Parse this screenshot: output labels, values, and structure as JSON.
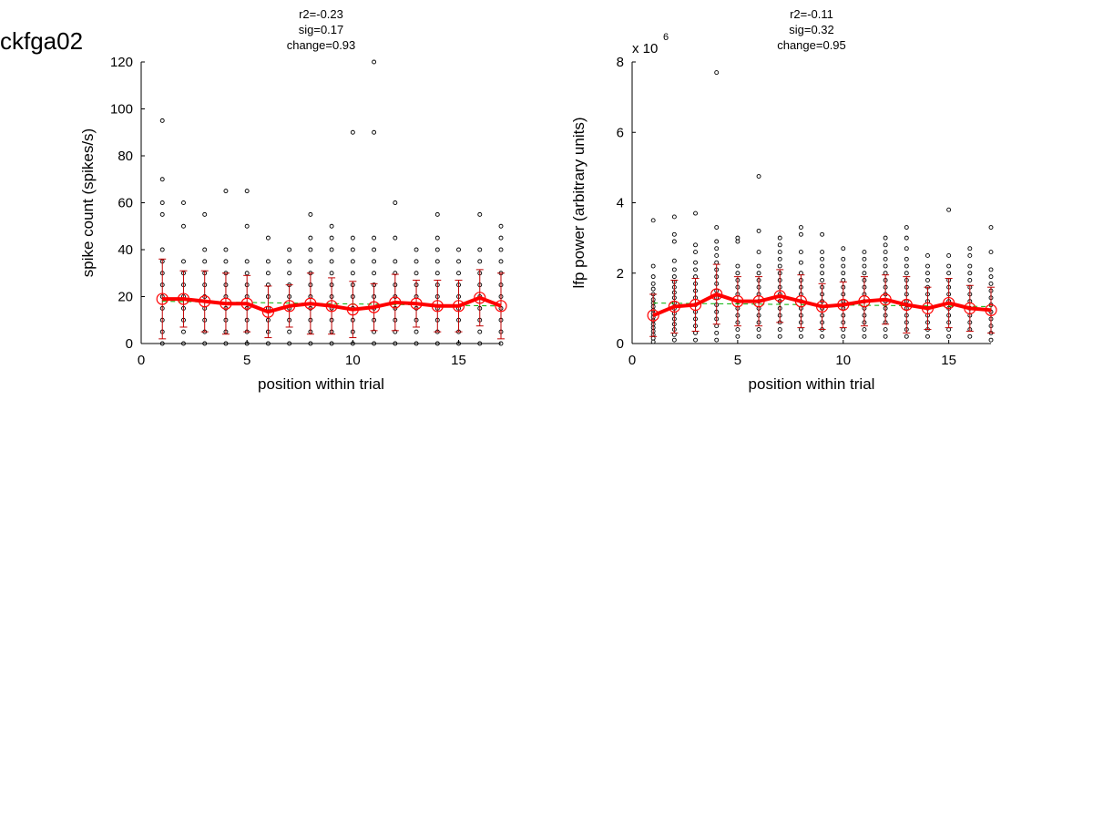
{
  "figure": {
    "title": "ckfga02"
  },
  "colors": {
    "mean": "#ff0000",
    "errorbar": "#c00000",
    "points": "#000000",
    "fit": "#00b000",
    "axis": "#000000"
  },
  "chart_data": [
    {
      "type": "scatter",
      "title_lines": [
        "r2=-0.23",
        "sig=0.17",
        "change=0.93"
      ],
      "xlabel": "position within trial",
      "ylabel": "spike count (spikes/s)",
      "exponent_label": "",
      "xlim": [
        0,
        17
      ],
      "ylim": [
        0,
        120
      ],
      "xticks": [
        0,
        5,
        10,
        15
      ],
      "yticks": [
        0,
        20,
        40,
        60,
        80,
        100,
        120
      ],
      "ytick_labels": [
        "0",
        "20",
        "40",
        "60",
        "80",
        "100",
        "120"
      ],
      "grid": false,
      "series": [
        {
          "kind": "mean",
          "x": [
            1,
            2,
            3,
            4,
            5,
            6,
            7,
            8,
            9,
            10,
            11,
            12,
            13,
            14,
            15,
            16,
            17
          ],
          "y": [
            19,
            19,
            18,
            17,
            17,
            13.5,
            16,
            17,
            16,
            14.5,
            15.5,
            17.5,
            17,
            16,
            16,
            19.5,
            16
          ],
          "sd": [
            17,
            12,
            13,
            13,
            12,
            11,
            9,
            13,
            12,
            12,
            10,
            12,
            10,
            11,
            11,
            12,
            14
          ]
        },
        {
          "kind": "fit",
          "x": [
            1,
            17
          ],
          "y": [
            18,
            16
          ]
        },
        {
          "kind": "points",
          "columns": [
            [
              0,
              5,
              10,
              15,
              20,
              25,
              30,
              35,
              40,
              55,
              60,
              70,
              95
            ],
            [
              0,
              5,
              10,
              15,
              20,
              25,
              30,
              35,
              50,
              60
            ],
            [
              0,
              5,
              10,
              15,
              20,
              25,
              30,
              35,
              40,
              55
            ],
            [
              0,
              5,
              10,
              15,
              20,
              25,
              30,
              35,
              40,
              65
            ],
            [
              0,
              5,
              10,
              15,
              20,
              25,
              30,
              35,
              50,
              65
            ],
            [
              0,
              5,
              10,
              15,
              20,
              25,
              30,
              35,
              45
            ],
            [
              0,
              5,
              10,
              15,
              20,
              25,
              30,
              35,
              40
            ],
            [
              0,
              5,
              10,
              15,
              20,
              25,
              30,
              35,
              40,
              45,
              55
            ],
            [
              0,
              5,
              10,
              15,
              20,
              25,
              30,
              35,
              40,
              45,
              50
            ],
            [
              0,
              5,
              10,
              15,
              20,
              25,
              30,
              35,
              40,
              45,
              90
            ],
            [
              0,
              5,
              10,
              15,
              20,
              25,
              30,
              35,
              40,
              45,
              90,
              120
            ],
            [
              0,
              5,
              10,
              15,
              20,
              25,
              30,
              35,
              45,
              60
            ],
            [
              0,
              5,
              10,
              15,
              20,
              25,
              30,
              35,
              40
            ],
            [
              0,
              5,
              10,
              15,
              20,
              25,
              30,
              35,
              40,
              45,
              55
            ],
            [
              0,
              5,
              10,
              15,
              20,
              25,
              30,
              35,
              40
            ],
            [
              0,
              5,
              10,
              15,
              20,
              25,
              30,
              35,
              40,
              55
            ],
            [
              0,
              5,
              10,
              15,
              20,
              25,
              30,
              35,
              40,
              45,
              50
            ]
          ]
        }
      ]
    },
    {
      "type": "scatter",
      "title_lines": [
        "r2=-0.11",
        "sig=0.32",
        "change=0.95"
      ],
      "xlabel": "position within trial",
      "ylabel": "lfp power (arbitrary units)",
      "exponent_label": "x 10",
      "exponent_sup": "6",
      "xlim": [
        0,
        17
      ],
      "ylim": [
        0,
        8
      ],
      "xticks": [
        0,
        5,
        10,
        15
      ],
      "yticks": [
        0,
        2,
        4,
        6,
        8
      ],
      "ytick_labels": [
        "0",
        "2",
        "4",
        "6",
        "8"
      ],
      "grid": false,
      "series": [
        {
          "kind": "mean",
          "x": [
            1,
            2,
            3,
            4,
            5,
            6,
            7,
            8,
            9,
            10,
            11,
            12,
            13,
            14,
            15,
            16,
            17
          ],
          "y": [
            0.8,
            1.05,
            1.1,
            1.4,
            1.2,
            1.2,
            1.35,
            1.2,
            1.05,
            1.1,
            1.2,
            1.25,
            1.1,
            1.0,
            1.15,
            1.0,
            0.95
          ],
          "sd": [
            0.6,
            0.75,
            0.75,
            0.85,
            0.7,
            0.7,
            0.75,
            0.75,
            0.65,
            0.65,
            0.7,
            0.7,
            0.8,
            0.6,
            0.7,
            0.65,
            0.65
          ]
        },
        {
          "kind": "fit",
          "x": [
            1,
            17
          ],
          "y": [
            1.15,
            1.05
          ]
        },
        {
          "kind": "points",
          "columns": [
            [
              0.05,
              0.15,
              0.25,
              0.35,
              0.45,
              0.55,
              0.65,
              0.75,
              0.85,
              0.95,
              1.05,
              1.15,
              1.25,
              1.4,
              1.55,
              1.7,
              1.9,
              2.2,
              3.5
            ],
            [
              0.1,
              0.25,
              0.4,
              0.55,
              0.7,
              0.85,
              1.0,
              1.15,
              1.3,
              1.45,
              1.6,
              1.75,
              1.9,
              2.1,
              2.35,
              2.9,
              3.1,
              3.6
            ],
            [
              0.1,
              0.3,
              0.5,
              0.7,
              0.9,
              1.1,
              1.3,
              1.5,
              1.7,
              1.9,
              2.1,
              2.3,
              2.6,
              2.8,
              3.7
            ],
            [
              0.1,
              0.3,
              0.5,
              0.7,
              0.9,
              1.1,
              1.3,
              1.5,
              1.7,
              1.9,
              2.1,
              2.3,
              2.5,
              2.7,
              2.9,
              3.3,
              7.7
            ],
            [
              0.2,
              0.4,
              0.6,
              0.8,
              1.0,
              1.2,
              1.4,
              1.6,
              1.8,
              2.0,
              2.2,
              2.9,
              3.0
            ],
            [
              0.2,
              0.4,
              0.6,
              0.8,
              1.0,
              1.2,
              1.4,
              1.6,
              1.8,
              2.0,
              2.2,
              2.6,
              3.2,
              4.75
            ],
            [
              0.2,
              0.4,
              0.6,
              0.8,
              1.0,
              1.2,
              1.4,
              1.6,
              1.8,
              2.0,
              2.2,
              2.4,
              2.6,
              2.8,
              3.0
            ],
            [
              0.2,
              0.4,
              0.6,
              0.8,
              1.0,
              1.2,
              1.4,
              1.6,
              1.8,
              2.0,
              2.3,
              2.6,
              3.1,
              3.3
            ],
            [
              0.2,
              0.4,
              0.6,
              0.8,
              1.0,
              1.2,
              1.4,
              1.6,
              1.8,
              2.0,
              2.2,
              2.4,
              2.6,
              3.1
            ],
            [
              0.2,
              0.4,
              0.6,
              0.8,
              1.0,
              1.2,
              1.4,
              1.6,
              1.8,
              2.0,
              2.2,
              2.4,
              2.7
            ],
            [
              0.2,
              0.4,
              0.6,
              0.8,
              1.0,
              1.2,
              1.4,
              1.6,
              1.8,
              2.0,
              2.2,
              2.4,
              2.6
            ],
            [
              0.2,
              0.4,
              0.6,
              0.8,
              1.0,
              1.2,
              1.4,
              1.6,
              1.8,
              2.0,
              2.2,
              2.4,
              2.6,
              2.8,
              3.0
            ],
            [
              0.2,
              0.4,
              0.6,
              0.8,
              1.0,
              1.2,
              1.4,
              1.6,
              1.8,
              2.0,
              2.2,
              2.4,
              2.7,
              3.0,
              3.3
            ],
            [
              0.2,
              0.4,
              0.6,
              0.8,
              1.0,
              1.2,
              1.4,
              1.6,
              1.8,
              2.0,
              2.2,
              2.5
            ],
            [
              0.2,
              0.4,
              0.6,
              0.8,
              1.0,
              1.2,
              1.4,
              1.6,
              1.8,
              2.0,
              2.2,
              2.5,
              3.8
            ],
            [
              0.2,
              0.4,
              0.6,
              0.8,
              1.0,
              1.2,
              1.4,
              1.6,
              1.8,
              2.0,
              2.2,
              2.5,
              2.7
            ],
            [
              0.1,
              0.3,
              0.5,
              0.7,
              0.9,
              1.1,
              1.3,
              1.5,
              1.7,
              1.9,
              2.1,
              2.6,
              3.3
            ]
          ]
        }
      ]
    }
  ]
}
